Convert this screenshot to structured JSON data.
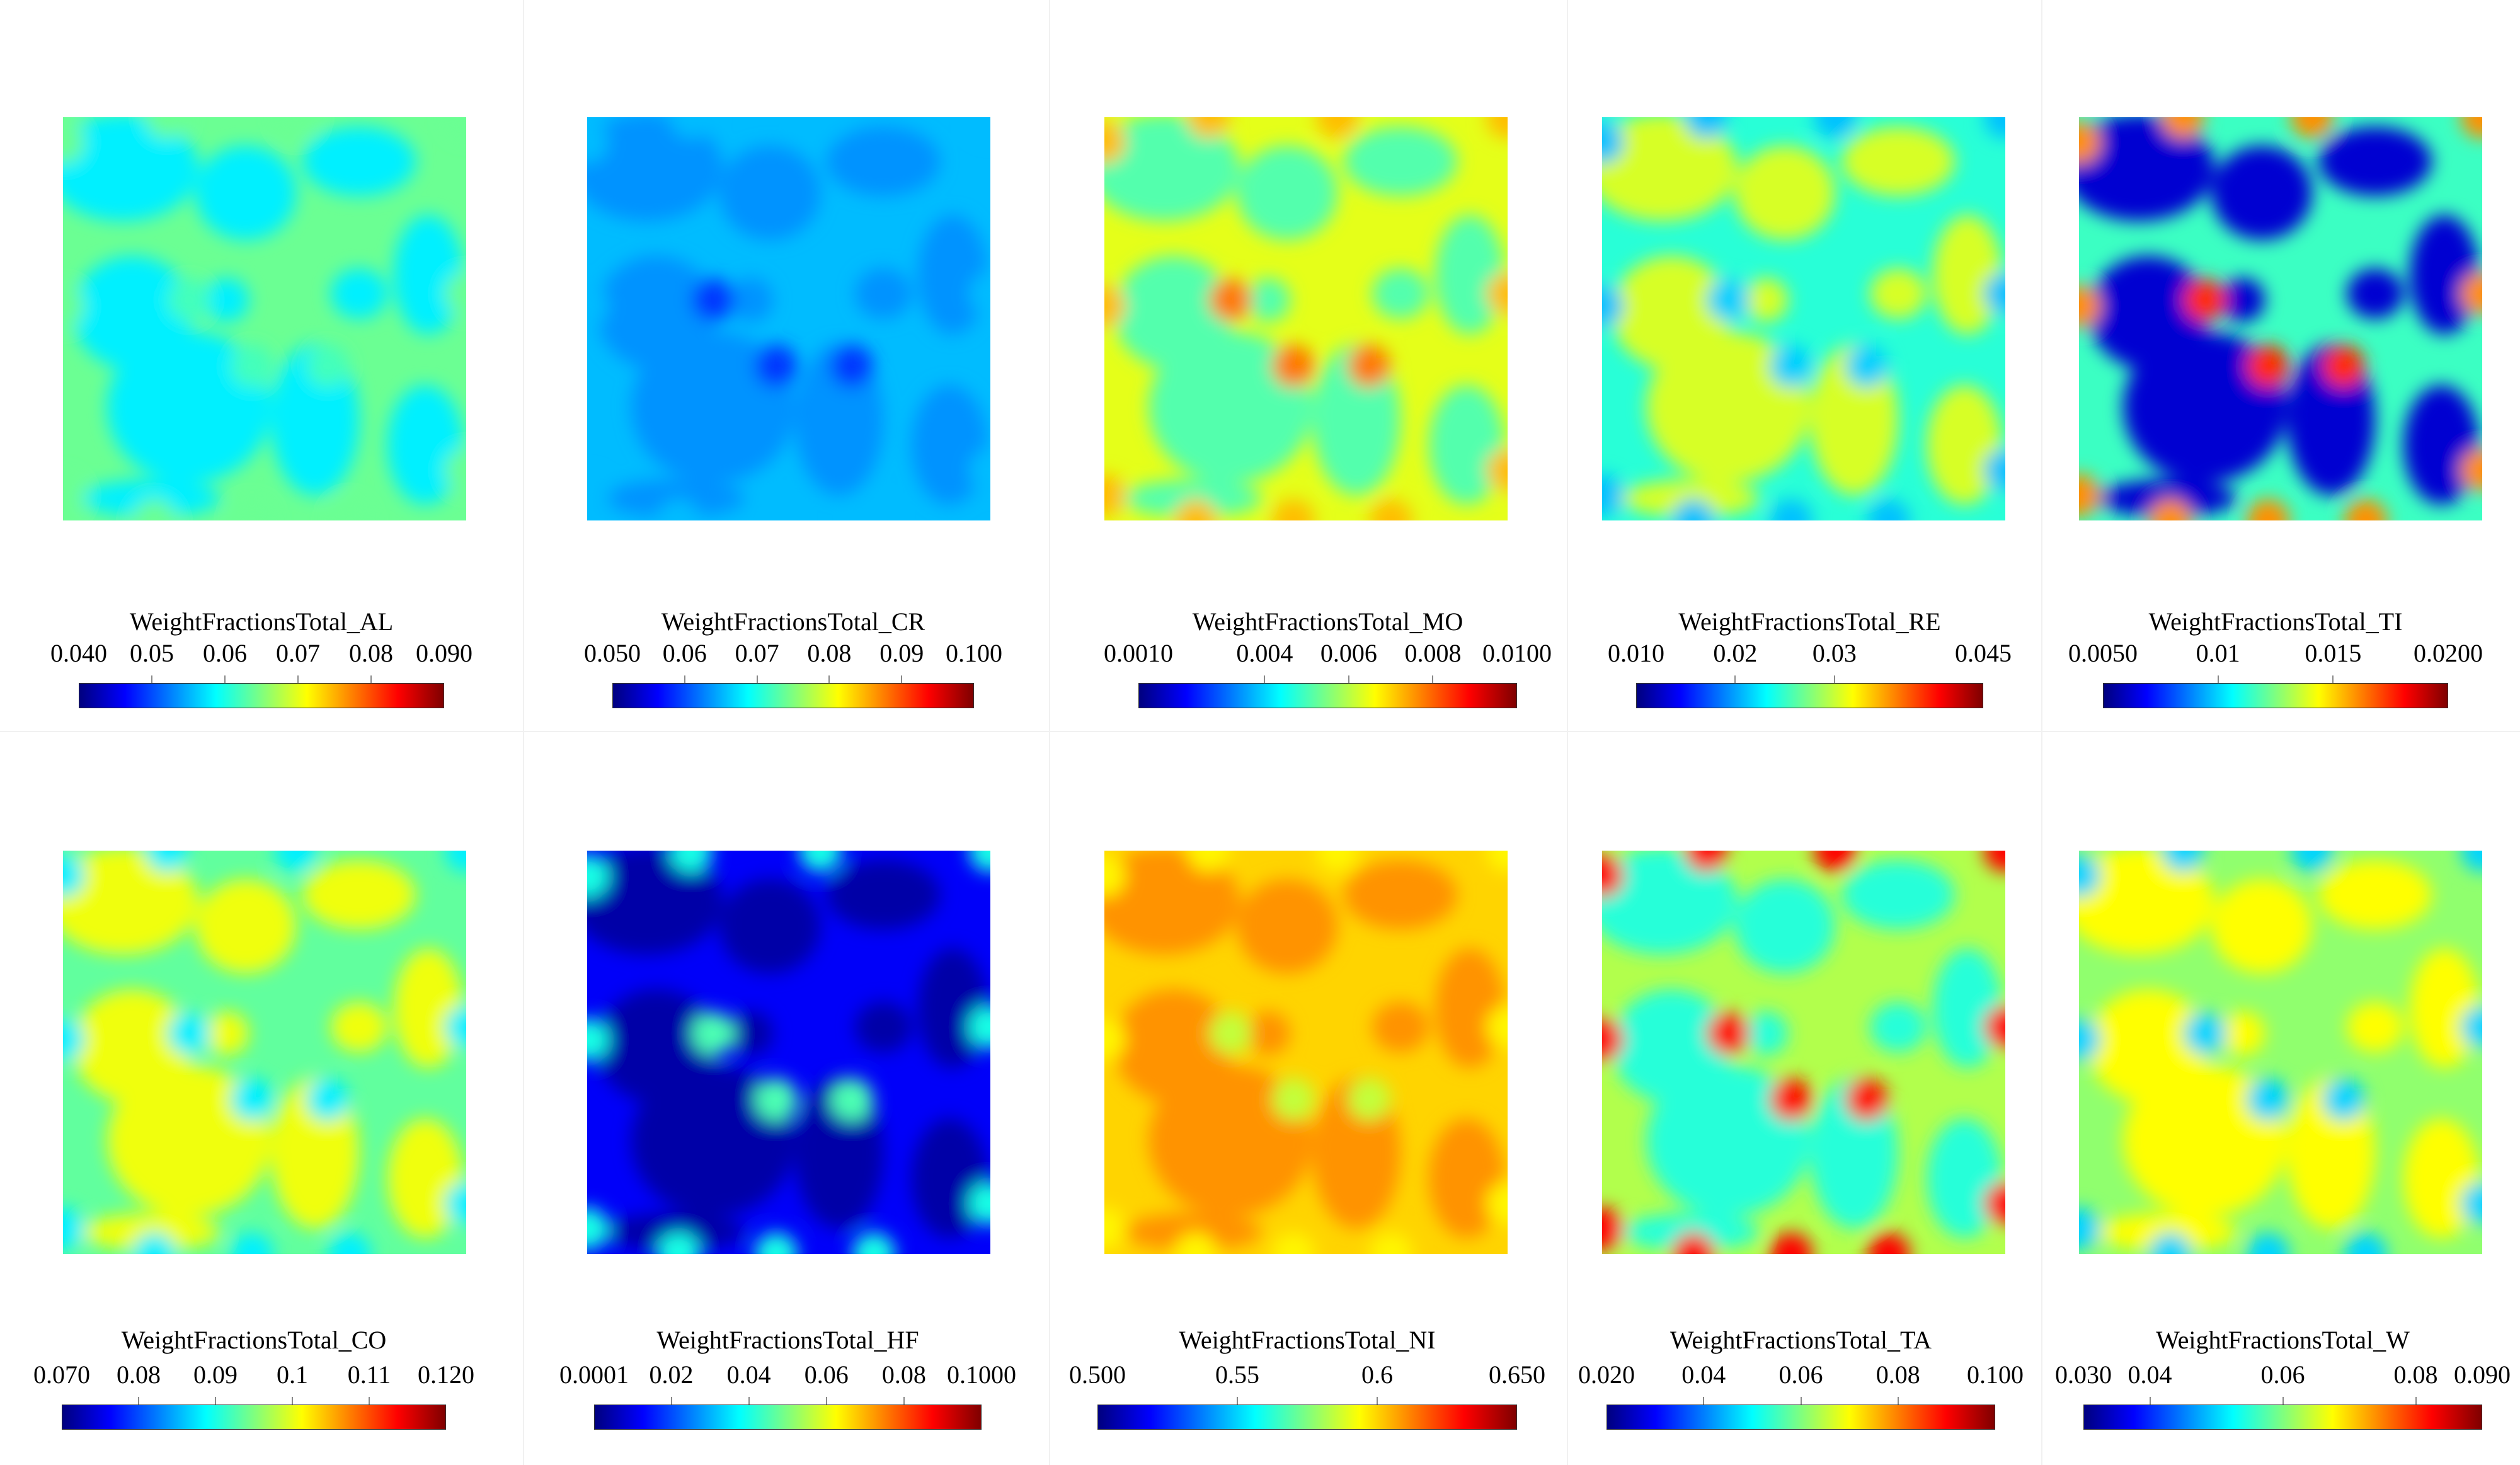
{
  "colormap": [
    "#00007f",
    "#0000ff",
    "#007fff",
    "#00ffff",
    "#7fff7f",
    "#ffff00",
    "#ff7f00",
    "#ff0000",
    "#7f0000"
  ],
  "chart_data": [
    {
      "type": "heatmap",
      "title": "WeightFractionsTotal_AL",
      "range": [
        0.04,
        0.09
      ],
      "ticks": [
        0.04,
        0.05,
        0.06,
        0.07,
        0.08,
        0.09
      ],
      "tick_labels": [
        "0.040",
        "0.05",
        "0.06",
        "0.07",
        "0.08",
        "0.090"
      ],
      "grain_value": 0.058,
      "channel_value": 0.064,
      "spot_value": 0.062,
      "edge_value": 0.064
    },
    {
      "type": "heatmap",
      "title": "WeightFractionsTotal_CR",
      "range": [
        0.05,
        0.1
      ],
      "ticks": [
        0.05,
        0.06,
        0.07,
        0.08,
        0.09,
        0.1
      ],
      "tick_labels": [
        "0.050",
        "0.06",
        "0.07",
        "0.08",
        "0.09",
        "0.100"
      ],
      "grain_value": 0.0635,
      "channel_value": 0.0655,
      "spot_value": 0.059,
      "edge_value": 0.0655
    },
    {
      "type": "heatmap",
      "title": "WeightFractionsTotal_MO",
      "range": [
        0.001,
        0.01
      ],
      "ticks": [
        0.001,
        0.004,
        0.006,
        0.008,
        0.01
      ],
      "tick_labels": [
        "0.0010",
        "0.004",
        "0.006",
        "0.008",
        "0.0100"
      ],
      "grain_value": 0.0051,
      "channel_value": 0.0064,
      "spot_value": 0.0078,
      "edge_value": 0.0072
    },
    {
      "type": "heatmap",
      "title": "WeightFractionsTotal_RE",
      "range": [
        0.01,
        0.045
      ],
      "ticks": [
        0.01,
        0.02,
        0.03,
        0.045
      ],
      "tick_labels": [
        "0.010",
        "0.02",
        "0.03",
        "0.045"
      ],
      "grain_value": 0.0305,
      "channel_value": 0.0245,
      "spot_value": 0.0215,
      "edge_value": 0.021
    },
    {
      "type": "heatmap",
      "title": "WeightFractionsTotal_TI",
      "range": [
        0.005,
        0.02
      ],
      "ticks": [
        0.005,
        0.01,
        0.015,
        0.02
      ],
      "tick_labels": [
        "0.0050",
        "0.01",
        "0.015",
        "0.0200"
      ],
      "grain_value": 0.0062,
      "channel_value": 0.0115,
      "spot_value": 0.0175,
      "edge_value": 0.016
    },
    {
      "type": "heatmap",
      "title": "WeightFractionsTotal_CO",
      "range": [
        0.07,
        0.12
      ],
      "ticks": [
        0.07,
        0.08,
        0.09,
        0.1,
        0.11,
        0.12
      ],
      "tick_labels": [
        "0.070",
        "0.08",
        "0.09",
        "0.1",
        "0.11",
        "0.120"
      ],
      "grain_value": 0.1005,
      "channel_value": 0.0935,
      "spot_value": 0.088,
      "edge_value": 0.088
    },
    {
      "type": "heatmap",
      "title": "WeightFractionsTotal_HF",
      "range": [
        0.0001,
        0.1
      ],
      "ticks": [
        0.0001,
        0.02,
        0.04,
        0.06,
        0.08,
        0.1
      ],
      "tick_labels": [
        "0.0001",
        "0.02",
        "0.04",
        "0.06",
        "0.08",
        "0.1000"
      ],
      "grain_value": 0.004,
      "channel_value": 0.012,
      "spot_value": 0.045,
      "edge_value": 0.04
    },
    {
      "type": "heatmap",
      "title": "WeightFractionsTotal_NI",
      "range": [
        0.5,
        0.65
      ],
      "ticks": [
        0.5,
        0.55,
        0.6,
        0.65
      ],
      "tick_labels": [
        "0.500",
        "0.55",
        "0.6",
        "0.650"
      ],
      "grain_value": 0.6095,
      "channel_value": 0.6,
      "spot_value": 0.585,
      "edge_value": 0.595
    },
    {
      "type": "heatmap",
      "title": "WeightFractionsTotal_TA",
      "range": [
        0.02,
        0.1
      ],
      "ticks": [
        0.02,
        0.04,
        0.06,
        0.08,
        0.1
      ],
      "tick_labels": [
        "0.020",
        "0.04",
        "0.06",
        "0.08",
        "0.100"
      ],
      "grain_value": 0.053,
      "channel_value": 0.064,
      "spot_value": 0.088,
      "edge_value": 0.09
    },
    {
      "type": "heatmap",
      "title": "WeightFractionsTotal_W",
      "range": [
        0.03,
        0.09
      ],
      "ticks": [
        0.03,
        0.04,
        0.06,
        0.08,
        0.09
      ],
      "tick_labels": [
        "0.030",
        "0.04",
        "0.06",
        "0.08",
        "0.090"
      ],
      "grain_value": 0.0675,
      "channel_value": 0.061,
      "spot_value": 0.05,
      "edge_value": 0.05
    }
  ]
}
